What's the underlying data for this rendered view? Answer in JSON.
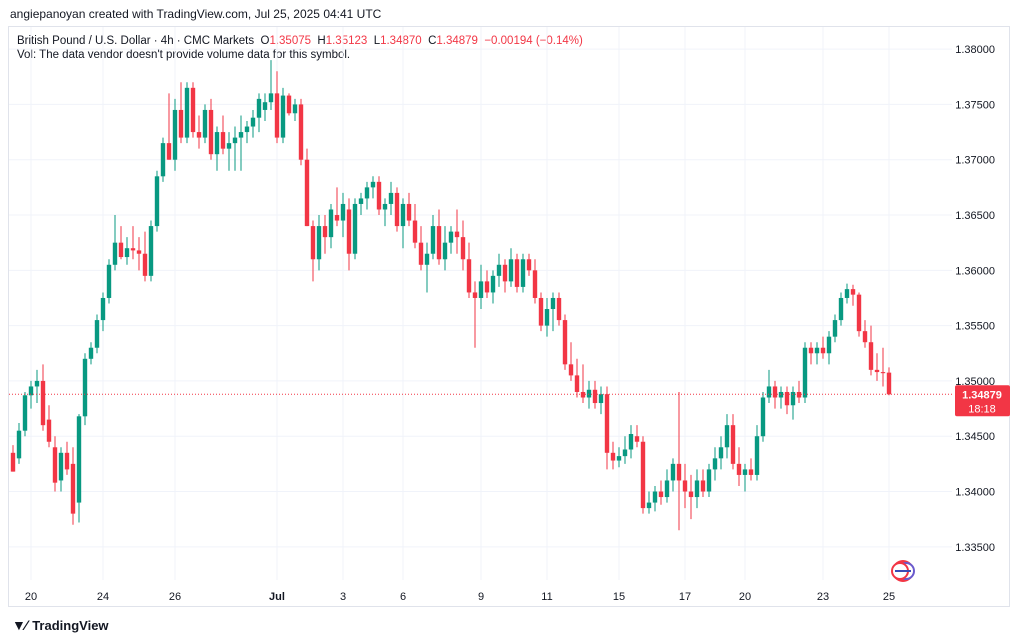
{
  "header": {
    "credit": "angiepanoyan created with TradingView.com, Jul 25, 2025 04:41 UTC"
  },
  "legend": {
    "symbol": "British Pound / U.S. Dollar · 4h · CMC Markets",
    "o_label": "O",
    "o": "1.35075",
    "h_label": "H",
    "h": "1.35123",
    "l_label": "L",
    "l": "1.34870",
    "c_label": "C",
    "c": "1.34879",
    "change": "−0.00194 (−0.14%)",
    "vol_note": "Vol: The data vendor doesn't provide volume data for this symbol."
  },
  "price_badge": {
    "price": "1.34879",
    "countdown": "18:18"
  },
  "footer": {
    "brand": "TradingView"
  },
  "colors": {
    "up": "#089981",
    "down": "#f23645",
    "grid": "#f0f3fa",
    "axis_text": "#131722"
  },
  "chart_data": {
    "type": "candlestick",
    "title": "British Pound / U.S. Dollar · 4h · CMC Markets",
    "y_ticks": [
      "1.38000",
      "1.37500",
      "1.37000",
      "1.36500",
      "1.36000",
      "1.35500",
      "1.35000",
      "1.34500",
      "1.34000",
      "1.33500"
    ],
    "x_ticks": [
      {
        "label": "20",
        "index": 3
      },
      {
        "label": "24",
        "index": 15
      },
      {
        "label": "26",
        "index": 27
      },
      {
        "label": "Jul",
        "index": 44
      },
      {
        "label": "3",
        "index": 55
      },
      {
        "label": "6",
        "index": 65
      },
      {
        "label": "9",
        "index": 78
      },
      {
        "label": "11",
        "index": 89
      },
      {
        "label": "15",
        "index": 101
      },
      {
        "label": "17",
        "index": 112
      },
      {
        "label": "20",
        "index": 122
      },
      {
        "label": "23",
        "index": 135
      },
      {
        "label": "25",
        "index": 146
      }
    ],
    "ylim": [
      1.332,
      1.382
    ],
    "last_price": 1.34879,
    "grid": true,
    "candles": [
      [
        1.3435,
        1.3442,
        1.3418,
        1.3418
      ],
      [
        1.343,
        1.3462,
        1.3425,
        1.3455
      ],
      [
        1.3455,
        1.349,
        1.345,
        1.3487
      ],
      [
        1.3487,
        1.35,
        1.3475,
        1.3495
      ],
      [
        1.3495,
        1.351,
        1.348,
        1.35
      ],
      [
        1.35,
        1.3515,
        1.3455,
        1.346
      ],
      [
        1.3465,
        1.3478,
        1.344,
        1.3445
      ],
      [
        1.344,
        1.345,
        1.34,
        1.3408
      ],
      [
        1.341,
        1.344,
        1.34,
        1.3435
      ],
      [
        1.3435,
        1.3445,
        1.3415,
        1.342
      ],
      [
        1.3425,
        1.344,
        1.337,
        1.338
      ],
      [
        1.339,
        1.347,
        1.3372,
        1.3468
      ],
      [
        1.3468,
        1.3525,
        1.346,
        1.352
      ],
      [
        1.352,
        1.3535,
        1.3515,
        1.353
      ],
      [
        1.353,
        1.356,
        1.3525,
        1.3555
      ],
      [
        1.3555,
        1.358,
        1.3545,
        1.3575
      ],
      [
        1.3575,
        1.361,
        1.357,
        1.3605
      ],
      [
        1.3605,
        1.365,
        1.36,
        1.3625
      ],
      [
        1.3625,
        1.364,
        1.361,
        1.3612
      ],
      [
        1.3612,
        1.363,
        1.3605,
        1.362
      ],
      [
        1.362,
        1.364,
        1.361,
        1.3618
      ],
      [
        1.3618,
        1.363,
        1.36,
        1.3615
      ],
      [
        1.3615,
        1.3635,
        1.359,
        1.3595
      ],
      [
        1.3595,
        1.3645,
        1.359,
        1.364
      ],
      [
        1.364,
        1.369,
        1.3635,
        1.3685
      ],
      [
        1.3685,
        1.372,
        1.368,
        1.3715
      ],
      [
        1.3715,
        1.376,
        1.37,
        1.37
      ],
      [
        1.37,
        1.3755,
        1.369,
        1.3745
      ],
      [
        1.3745,
        1.377,
        1.3715,
        1.372
      ],
      [
        1.372,
        1.377,
        1.3715,
        1.3765
      ],
      [
        1.3765,
        1.377,
        1.372,
        1.3725
      ],
      [
        1.3725,
        1.374,
        1.371,
        1.372
      ],
      [
        1.372,
        1.375,
        1.3715,
        1.3745
      ],
      [
        1.3745,
        1.3755,
        1.37,
        1.3705
      ],
      [
        1.3705,
        1.373,
        1.369,
        1.3725
      ],
      [
        1.3725,
        1.374,
        1.3705,
        1.371
      ],
      [
        1.371,
        1.3725,
        1.369,
        1.3715
      ],
      [
        1.3715,
        1.373,
        1.369,
        1.372
      ],
      [
        1.372,
        1.374,
        1.369,
        1.3725
      ],
      [
        1.3725,
        1.3735,
        1.3715,
        1.373
      ],
      [
        1.373,
        1.3745,
        1.372,
        1.3738
      ],
      [
        1.3738,
        1.376,
        1.3725,
        1.3755
      ],
      [
        1.3745,
        1.376,
        1.3735,
        1.3752
      ],
      [
        1.3752,
        1.379,
        1.3745,
        1.376
      ],
      [
        1.376,
        1.378,
        1.3715,
        1.372
      ],
      [
        1.372,
        1.3765,
        1.3715,
        1.3758
      ],
      [
        1.3758,
        1.376,
        1.374,
        1.3742
      ],
      [
        1.3742,
        1.3755,
        1.3735,
        1.375
      ],
      [
        1.375,
        1.3755,
        1.3695,
        1.37
      ],
      [
        1.37,
        1.371,
        1.364,
        1.364
      ],
      [
        1.364,
        1.3645,
        1.359,
        1.361
      ],
      [
        1.361,
        1.365,
        1.36,
        1.364
      ],
      [
        1.364,
        1.365,
        1.3615,
        1.363
      ],
      [
        1.363,
        1.366,
        1.362,
        1.3655
      ],
      [
        1.365,
        1.3675,
        1.364,
        1.3645
      ],
      [
        1.3645,
        1.367,
        1.363,
        1.366
      ],
      [
        1.3655,
        1.3665,
        1.36,
        1.3615
      ],
      [
        1.3615,
        1.3665,
        1.361,
        1.366
      ],
      [
        1.366,
        1.367,
        1.365,
        1.3665
      ],
      [
        1.3665,
        1.368,
        1.3655,
        1.3675
      ],
      [
        1.3675,
        1.3685,
        1.3665,
        1.368
      ],
      [
        1.368,
        1.3685,
        1.365,
        1.3655
      ],
      [
        1.3655,
        1.3665,
        1.364,
        1.366
      ],
      [
        1.366,
        1.368,
        1.365,
        1.367
      ],
      [
        1.367,
        1.3675,
        1.3635,
        1.364
      ],
      [
        1.364,
        1.3665,
        1.362,
        1.366
      ],
      [
        1.366,
        1.367,
        1.364,
        1.3645
      ],
      [
        1.3645,
        1.366,
        1.362,
        1.3625
      ],
      [
        1.3625,
        1.364,
        1.36,
        1.3605
      ],
      [
        1.3605,
        1.3625,
        1.358,
        1.3615
      ],
      [
        1.3615,
        1.365,
        1.361,
        1.364
      ],
      [
        1.364,
        1.3655,
        1.3605,
        1.361
      ],
      [
        1.361,
        1.364,
        1.36,
        1.3625
      ],
      [
        1.3625,
        1.364,
        1.3615,
        1.3635
      ],
      [
        1.3635,
        1.3655,
        1.3615,
        1.363
      ],
      [
        1.363,
        1.3645,
        1.36,
        1.361
      ],
      [
        1.361,
        1.3625,
        1.3575,
        1.358
      ],
      [
        1.358,
        1.359,
        1.353,
        1.3575
      ],
      [
        1.3575,
        1.3605,
        1.3565,
        1.359
      ],
      [
        1.359,
        1.36,
        1.3575,
        1.358
      ],
      [
        1.358,
        1.36,
        1.357,
        1.3595
      ],
      [
        1.3595,
        1.3615,
        1.3585,
        1.3605
      ],
      [
        1.3605,
        1.361,
        1.358,
        1.359
      ],
      [
        1.359,
        1.362,
        1.3585,
        1.361
      ],
      [
        1.361,
        1.3615,
        1.358,
        1.3585
      ],
      [
        1.3585,
        1.3615,
        1.358,
        1.361
      ],
      [
        1.361,
        1.3615,
        1.3595,
        1.36
      ],
      [
        1.36,
        1.361,
        1.357,
        1.3575
      ],
      [
        1.3575,
        1.358,
        1.3545,
        1.355
      ],
      [
        1.355,
        1.3575,
        1.354,
        1.3565
      ],
      [
        1.3565,
        1.358,
        1.3545,
        1.3575
      ],
      [
        1.3575,
        1.358,
        1.355,
        1.3555
      ],
      [
        1.3555,
        1.356,
        1.351,
        1.3515
      ],
      [
        1.3515,
        1.3535,
        1.35,
        1.3505
      ],
      [
        1.3505,
        1.352,
        1.3485,
        1.349
      ],
      [
        1.349,
        1.3515,
        1.348,
        1.3485
      ],
      [
        1.3485,
        1.35,
        1.3475,
        1.3492
      ],
      [
        1.3492,
        1.35,
        1.3475,
        1.348
      ],
      [
        1.348,
        1.3495,
        1.347,
        1.3488
      ],
      [
        1.3488,
        1.3495,
        1.342,
        1.3435
      ],
      [
        1.3435,
        1.3445,
        1.342,
        1.3428
      ],
      [
        1.3428,
        1.344,
        1.3422,
        1.3432
      ],
      [
        1.3432,
        1.345,
        1.3425,
        1.3438
      ],
      [
        1.3438,
        1.346,
        1.343,
        1.3452
      ],
      [
        1.345,
        1.346,
        1.344,
        1.3445
      ],
      [
        1.3445,
        1.345,
        1.338,
        1.3385
      ],
      [
        1.3385,
        1.34,
        1.338,
        1.339
      ],
      [
        1.339,
        1.3405,
        1.3382,
        1.34
      ],
      [
        1.34,
        1.341,
        1.3388,
        1.3395
      ],
      [
        1.3395,
        1.342,
        1.339,
        1.341
      ],
      [
        1.341,
        1.343,
        1.34,
        1.3425
      ],
      [
        1.3425,
        1.349,
        1.3365,
        1.341
      ],
      [
        1.341,
        1.3425,
        1.3385,
        1.34
      ],
      [
        1.34,
        1.3415,
        1.3375,
        1.3395
      ],
      [
        1.3395,
        1.342,
        1.3385,
        1.341
      ],
      [
        1.341,
        1.342,
        1.3395,
        1.34
      ],
      [
        1.34,
        1.3425,
        1.3395,
        1.342
      ],
      [
        1.342,
        1.344,
        1.341,
        1.343
      ],
      [
        1.343,
        1.345,
        1.342,
        1.344
      ],
      [
        1.344,
        1.347,
        1.343,
        1.346
      ],
      [
        1.346,
        1.347,
        1.342,
        1.3425
      ],
      [
        1.3425,
        1.344,
        1.3405,
        1.3415
      ],
      [
        1.3415,
        1.3425,
        1.34,
        1.342
      ],
      [
        1.342,
        1.343,
        1.341,
        1.3415
      ],
      [
        1.3415,
        1.346,
        1.341,
        1.345
      ],
      [
        1.345,
        1.349,
        1.3445,
        1.3485
      ],
      [
        1.3485,
        1.351,
        1.348,
        1.3495
      ],
      [
        1.3495,
        1.35,
        1.3475,
        1.3485
      ],
      [
        1.3485,
        1.3495,
        1.3475,
        1.349
      ],
      [
        1.349,
        1.3495,
        1.347,
        1.3478
      ],
      [
        1.3478,
        1.3495,
        1.3465,
        1.349
      ],
      [
        1.349,
        1.35,
        1.348,
        1.3485
      ],
      [
        1.3485,
        1.3535,
        1.348,
        1.353
      ],
      [
        1.353,
        1.3535,
        1.3515,
        1.3525
      ],
      [
        1.3525,
        1.3535,
        1.3515,
        1.353
      ],
      [
        1.353,
        1.354,
        1.352,
        1.3525
      ],
      [
        1.3525,
        1.3545,
        1.3515,
        1.354
      ],
      [
        1.354,
        1.356,
        1.3535,
        1.3555
      ],
      [
        1.3555,
        1.358,
        1.355,
        1.3575
      ],
      [
        1.3575,
        1.3588,
        1.357,
        1.3583
      ],
      [
        1.3583,
        1.3587,
        1.3568,
        1.3578
      ],
      [
        1.3578,
        1.358,
        1.354,
        1.3545
      ],
      [
        1.3545,
        1.3555,
        1.353,
        1.3535
      ],
      [
        1.3535,
        1.355,
        1.3505,
        1.351
      ],
      [
        1.351,
        1.3525,
        1.35,
        1.3508
      ],
      [
        1.3508,
        1.353,
        1.3495,
        1.3507
      ],
      [
        1.35075,
        1.35123,
        1.3487,
        1.34879
      ]
    ]
  }
}
